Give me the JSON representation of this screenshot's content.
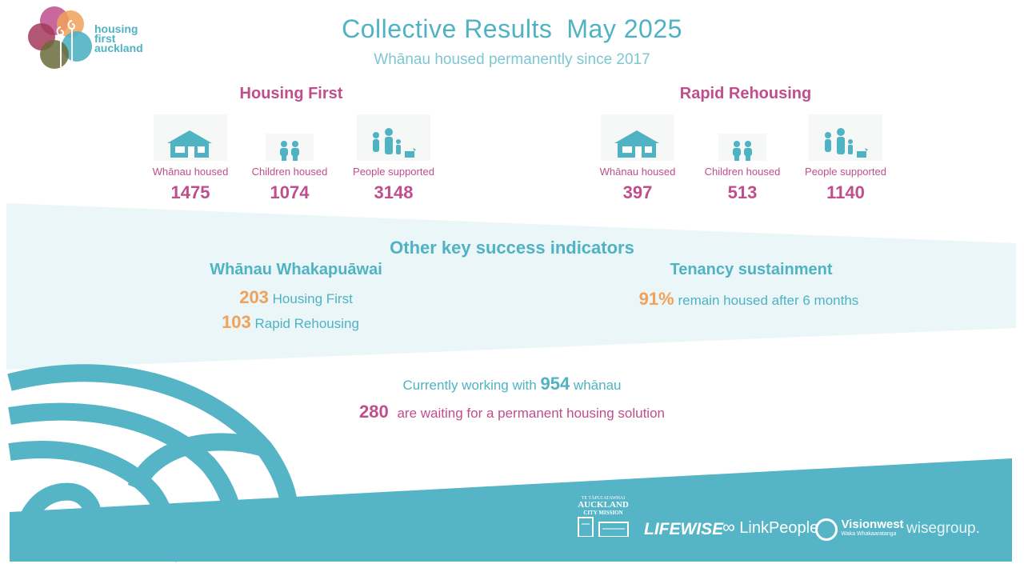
{
  "header": {
    "title": "Collective Results",
    "date": "May 2025",
    "subtitle": "Whānau housed permanently since 2017"
  },
  "logo": {
    "lines": [
      "housing",
      "first",
      "auckland"
    ]
  },
  "programs": [
    {
      "name": "Housing First",
      "stats": [
        {
          "icon": "house-icon",
          "label": "Whānau housed",
          "value": "1475"
        },
        {
          "icon": "children-icon",
          "label": "Children housed",
          "value": "1074"
        },
        {
          "icon": "family-icon",
          "label": "People supported",
          "value": "3148"
        }
      ]
    },
    {
      "name": "Rapid Rehousing",
      "stats": [
        {
          "icon": "house-icon",
          "label": "Whānau housed",
          "value": "397"
        },
        {
          "icon": "children-icon",
          "label": "Children housed",
          "value": "513"
        },
        {
          "icon": "family-icon",
          "label": "People supported",
          "value": "1140"
        }
      ]
    }
  ],
  "indicators": {
    "title": "Other key success indicators",
    "whakapuawai": {
      "heading": "Whānau Whakapuāwai",
      "items": [
        {
          "value": "203",
          "text": "Housing First"
        },
        {
          "value": "103",
          "text": "Rapid Rehousing"
        }
      ]
    },
    "tenancy": {
      "heading": "Tenancy sustainment",
      "value": "91%",
      "text": "remain housed after 6 months"
    }
  },
  "working": {
    "prefix": "Currently working with",
    "value": "954",
    "suffix": "whānau"
  },
  "waiting": {
    "value": "280",
    "text": "are waiting for a permanent housing solution"
  },
  "partners": {
    "acm_small": "TE TĀPUI ATAWHAI",
    "acm_line1": "AUCKLAND",
    "acm_line2": "CITY MISSION",
    "lifewise": "LIFEWISE",
    "linkpeople": "LinkPeople",
    "visionwest": "Visionwest",
    "visionwest_sub": "Waka Whakaaratanga",
    "wisegroup": "wisegroup."
  },
  "colors": {
    "teal": "#4fb3c3",
    "pink": "#c04e8c",
    "orange": "#f0a15a",
    "band": "#eaf6f8"
  }
}
